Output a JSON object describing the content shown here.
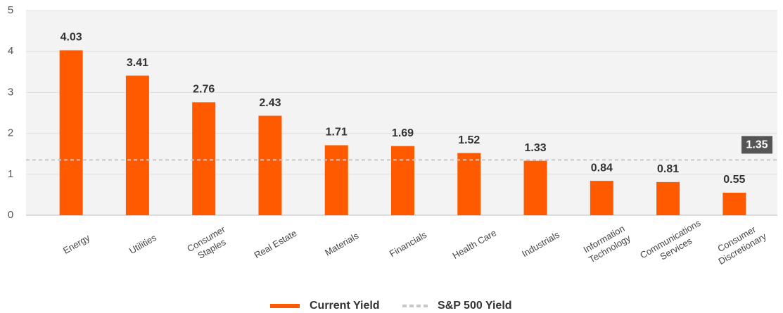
{
  "chart_data": {
    "type": "bar",
    "categories": [
      "Energy",
      "Utilities",
      "Consumer\nStaples",
      "Real Estate",
      "Materials",
      "Financials",
      "Health Care",
      "Industrials",
      "Information\nTechnology",
      "Communications\nServices",
      "Consumer\nDiscretionary"
    ],
    "series": [
      {
        "name": "Current Yield",
        "color": "#ff5a00",
        "values": [
          4.03,
          3.41,
          2.76,
          2.43,
          1.71,
          1.69,
          1.52,
          1.33,
          0.84,
          0.81,
          0.55
        ]
      }
    ],
    "reference_line": {
      "name": "S&P 500 Yield",
      "value": 1.35,
      "color": "#c8c8c8"
    },
    "ylim": [
      0,
      5
    ],
    "yticks": [
      0,
      1,
      2,
      3,
      4,
      5
    ],
    "grid": true
  }
}
